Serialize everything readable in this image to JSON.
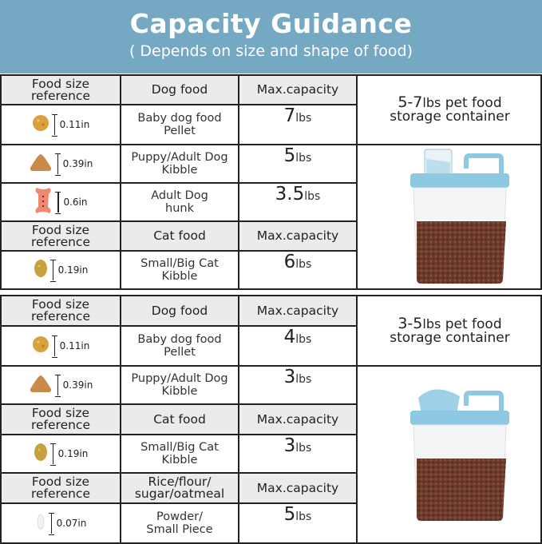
{
  "header": {
    "title": "Capacity Guidance",
    "subtitle": "( Depends on size and shape of food)"
  },
  "colors": {
    "banner": "#74a8c3",
    "header_row": "#ebebeb",
    "lid_blue": "#8ec9e3",
    "food": "#6b3a2a"
  },
  "tables": [
    {
      "container": {
        "range": "5-7",
        "unit": "lbs",
        "line1_rest": " pet food",
        "line2": "storage container",
        "image": "pet-food-container-with-measuring-cup"
      },
      "rows": [
        {
          "type": "header",
          "c1": "Food size reference",
          "c2": "Dog food",
          "c3": "Max.capacity"
        },
        {
          "type": "item",
          "icon": "round-pellet",
          "size": "0.11in",
          "name1": "Baby dog food",
          "name2": "Pellet",
          "value": "7",
          "unit": "lbs"
        },
        {
          "type": "item",
          "icon": "triangle-kibble",
          "size": "0.39in",
          "name1": "Puppy/Adult Dog",
          "name2": "Kibble",
          "value": "5",
          "unit": "lbs"
        },
        {
          "type": "item",
          "icon": "bone-biscuit",
          "size": "0.6in",
          "name1": "Adult Dog",
          "name2": "hunk",
          "value": "3.5",
          "unit": "lbs"
        },
        {
          "type": "header",
          "c1": "Food size reference",
          "c2": "Cat food",
          "c3": "Max.capacity"
        },
        {
          "type": "item",
          "icon": "oval-kibble",
          "size": "0.19in",
          "name1": "Small/Big Cat",
          "name2": "Kibble",
          "value": "6",
          "unit": "lbs"
        }
      ]
    },
    {
      "container": {
        "range": "3-5",
        "unit": "lbs",
        "line1_rest": " pet food",
        "line2": "storage container",
        "image": "pet-food-container-with-scoop"
      },
      "rows": [
        {
          "type": "header",
          "c1": "Food size reference",
          "c2": "Dog food",
          "c3": "Max.capacity"
        },
        {
          "type": "item",
          "icon": "round-pellet",
          "size": "0.11in",
          "name1": "Baby dog food",
          "name2": "Pellet",
          "value": "4",
          "unit": "lbs"
        },
        {
          "type": "item",
          "icon": "triangle-kibble",
          "size": "0.39in",
          "name1": "Puppy/Adult Dog",
          "name2": "Kibble",
          "value": "3",
          "unit": "lbs"
        },
        {
          "type": "header",
          "c1": "Food size reference",
          "c2": "Cat food",
          "c3": "Max.capacity"
        },
        {
          "type": "item",
          "icon": "oval-kibble",
          "size": "0.19in",
          "name1": "Small/Big Cat",
          "name2": "Kibble",
          "value": "3",
          "unit": "lbs"
        },
        {
          "type": "header",
          "c1": "Food size reference",
          "c2": "Rice/flour/ sugar/oatmeal",
          "c3": "Max.capacity"
        },
        {
          "type": "item",
          "icon": "rice-grain",
          "size": "0.07in",
          "name1": "Powder/",
          "name2": "Small Piece",
          "value": "5",
          "unit": "lbs"
        }
      ]
    }
  ]
}
